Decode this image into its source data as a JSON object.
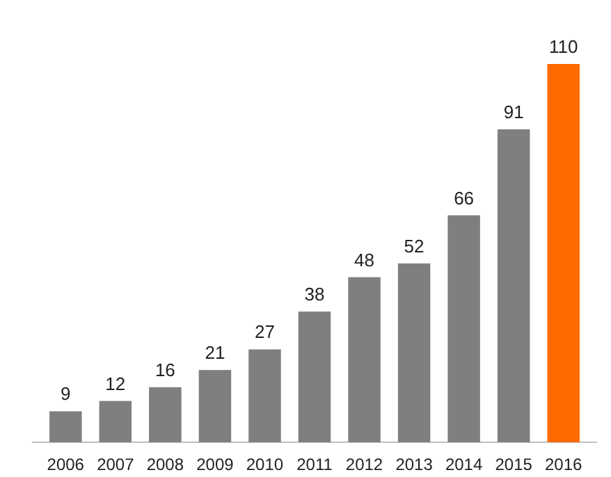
{
  "chart_data": {
    "type": "bar",
    "categories": [
      "2006",
      "2007",
      "2008",
      "2009",
      "2010",
      "2011",
      "2012",
      "2013",
      "2014",
      "2015",
      "2016"
    ],
    "values": [
      9,
      12,
      16,
      21,
      27,
      38,
      48,
      52,
      66,
      91,
      110
    ],
    "colors": [
      "#7f7f7f",
      "#7f7f7f",
      "#7f7f7f",
      "#7f7f7f",
      "#7f7f7f",
      "#7f7f7f",
      "#7f7f7f",
      "#7f7f7f",
      "#7f7f7f",
      "#7f7f7f",
      "#ff6a00"
    ],
    "data_labels": true
  }
}
